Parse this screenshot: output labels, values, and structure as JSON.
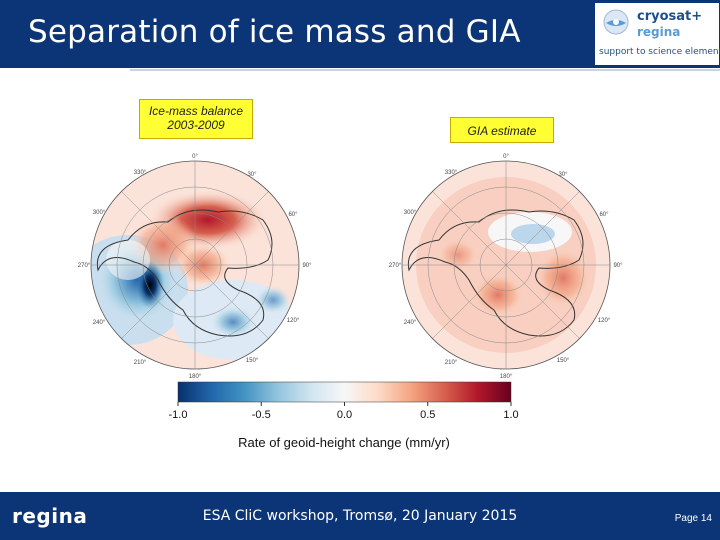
{
  "slide": {
    "title": "Separation of ice mass and GIA",
    "labels": {
      "left": "Ice-mass balance 2003-2009",
      "right": "GIA estimate"
    },
    "logo": {
      "name_line1": "cryosat+",
      "name_line2": "regina",
      "tagline": "support to science element"
    },
    "footer": {
      "left_logo": "regina",
      "center": "ESA CliC workshop, Tromsø, 20 January 2015",
      "page": "Page 14"
    }
  },
  "maps": {
    "longitude_labels": [
      "0°",
      "30°",
      "60°",
      "90°",
      "120°",
      "150°",
      "180°",
      "210°",
      "240°",
      "270°",
      "300°",
      "330°"
    ]
  },
  "colorbar": {
    "ticks": [
      "-1.0",
      "-0.5",
      "0.0",
      "0.5",
      "1.0"
    ],
    "title": "Rate of geoid-height change (mm/yr)",
    "colors": [
      "#08306b",
      "#2166ac",
      "#4393c3",
      "#92c5de",
      "#d1e5f0",
      "#f7f7f7",
      "#fddbc7",
      "#f4a582",
      "#d6604d",
      "#b2182b",
      "#67001f"
    ]
  }
}
